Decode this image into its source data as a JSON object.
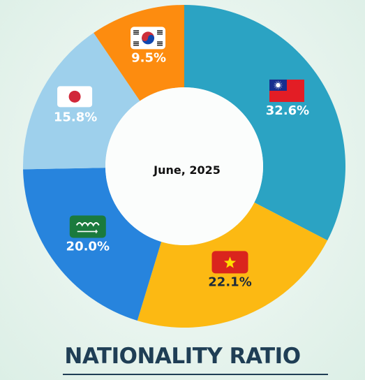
{
  "chart_data": {
    "type": "pie",
    "title": "NATIONALITY RATIO",
    "center_label": "June, 2025",
    "slices": [
      {
        "label": "Taiwan",
        "value": 32.6,
        "display": "32.6%",
        "color": "#2ba3c3",
        "text_color": "#ffffff",
        "flag": "taiwan-flag"
      },
      {
        "label": "Vietnam",
        "value": 22.1,
        "display": "22.1%",
        "color": "#fcb913",
        "text_color": "#1b2a3a",
        "flag": "vietnam-flag"
      },
      {
        "label": "Saudi Arabia",
        "value": 20.0,
        "display": "20.0%",
        "color": "#2784dd",
        "text_color": "#ffffff",
        "flag": "saudi-arabia-flag"
      },
      {
        "label": "Japan",
        "value": 15.8,
        "display": "15.8%",
        "color": "#9ed0ec",
        "text_color": "#ffffff",
        "flag": "japan-flag"
      },
      {
        "label": "South Korea",
        "value": 9.5,
        "display": "9.5%",
        "color": "#fd8c0f",
        "text_color": "#ffffff",
        "flag": "south-korea-flag"
      }
    ]
  }
}
